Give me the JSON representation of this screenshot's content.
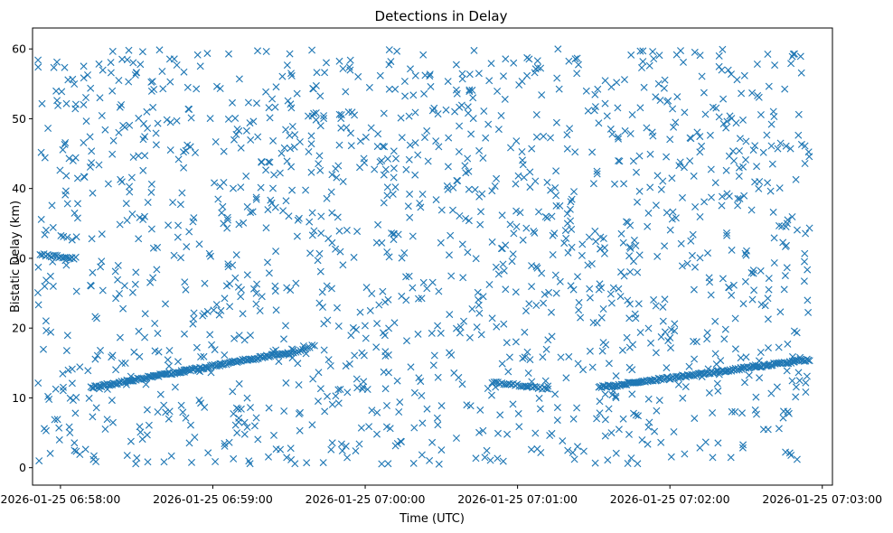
{
  "chart_data": {
    "type": "scatter",
    "title": "Detections in Delay",
    "xlabel": "Time (UTC)",
    "ylabel": "Bistatic Delay (km)",
    "marker": "x",
    "color": "#1f77b4",
    "grid": false,
    "legend": "none",
    "xlim": [
      "2026-01-25 06:57:49",
      "2026-01-25 07:03:04"
    ],
    "ylim": [
      -2.5,
      63
    ],
    "xticks": [
      "2026-01-25 06:58:00",
      "2026-01-25 06:59:00",
      "2026-01-25 07:00:00",
      "2026-01-25 07:01:00",
      "2026-01-25 07:02:00",
      "2026-01-25 07:03:00"
    ],
    "yticks": [
      0,
      10,
      20,
      30,
      40,
      50,
      60
    ],
    "data_time_range": [
      "2026-01-25 06:57:51",
      "2026-01-25 07:02:55"
    ],
    "noise_delay_range": [
      0.5,
      60
    ],
    "noise_point_count": 1500,
    "tracks": [
      {
        "start": [
          "2026-01-25 06:57:52",
          30.5
        ],
        "end": [
          "2026-01-25 06:58:06",
          30.0
        ],
        "count": 20
      },
      {
        "start": [
          "2026-01-25 06:58:12",
          11.5
        ],
        "end": [
          "2026-01-25 06:59:30",
          16.5
        ],
        "count": 150
      },
      {
        "start": [
          "2026-01-25 06:59:30",
          16.2
        ],
        "end": [
          "2026-01-25 06:59:40",
          17.5
        ],
        "count": 12
      },
      {
        "start": [
          "2026-01-25 07:00:50",
          12.3
        ],
        "end": [
          "2026-01-25 07:01:12",
          11.3
        ],
        "count": 30
      },
      {
        "start": [
          "2026-01-25 07:01:32",
          11.5
        ],
        "end": [
          "2026-01-25 07:02:55",
          15.5
        ],
        "count": 160
      }
    ]
  }
}
